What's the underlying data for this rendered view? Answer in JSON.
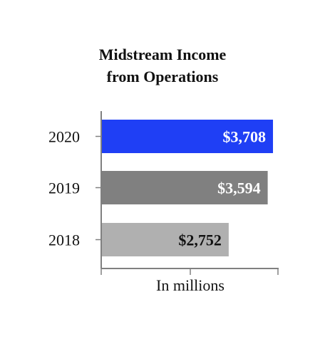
{
  "chart_data": {
    "type": "bar",
    "orientation": "horizontal",
    "title_lines": [
      "Midstream Income",
      "from Operations"
    ],
    "xlabel": "In millions",
    "ylabel": "",
    "categories": [
      "2020",
      "2019",
      "2018"
    ],
    "values": [
      3708,
      3594,
      2752
    ],
    "data_labels": [
      "$3,708",
      "$3,594",
      "$2,752"
    ],
    "xlim": [
      0,
      3800
    ],
    "grid": false,
    "legend": "none",
    "bar_colors": [
      "#1f3ff5",
      "#808080",
      "#b0b0b0"
    ],
    "label_colors": [
      "#ffffff",
      "#ffffff",
      "#111111"
    ],
    "axis_color": "#808080"
  }
}
